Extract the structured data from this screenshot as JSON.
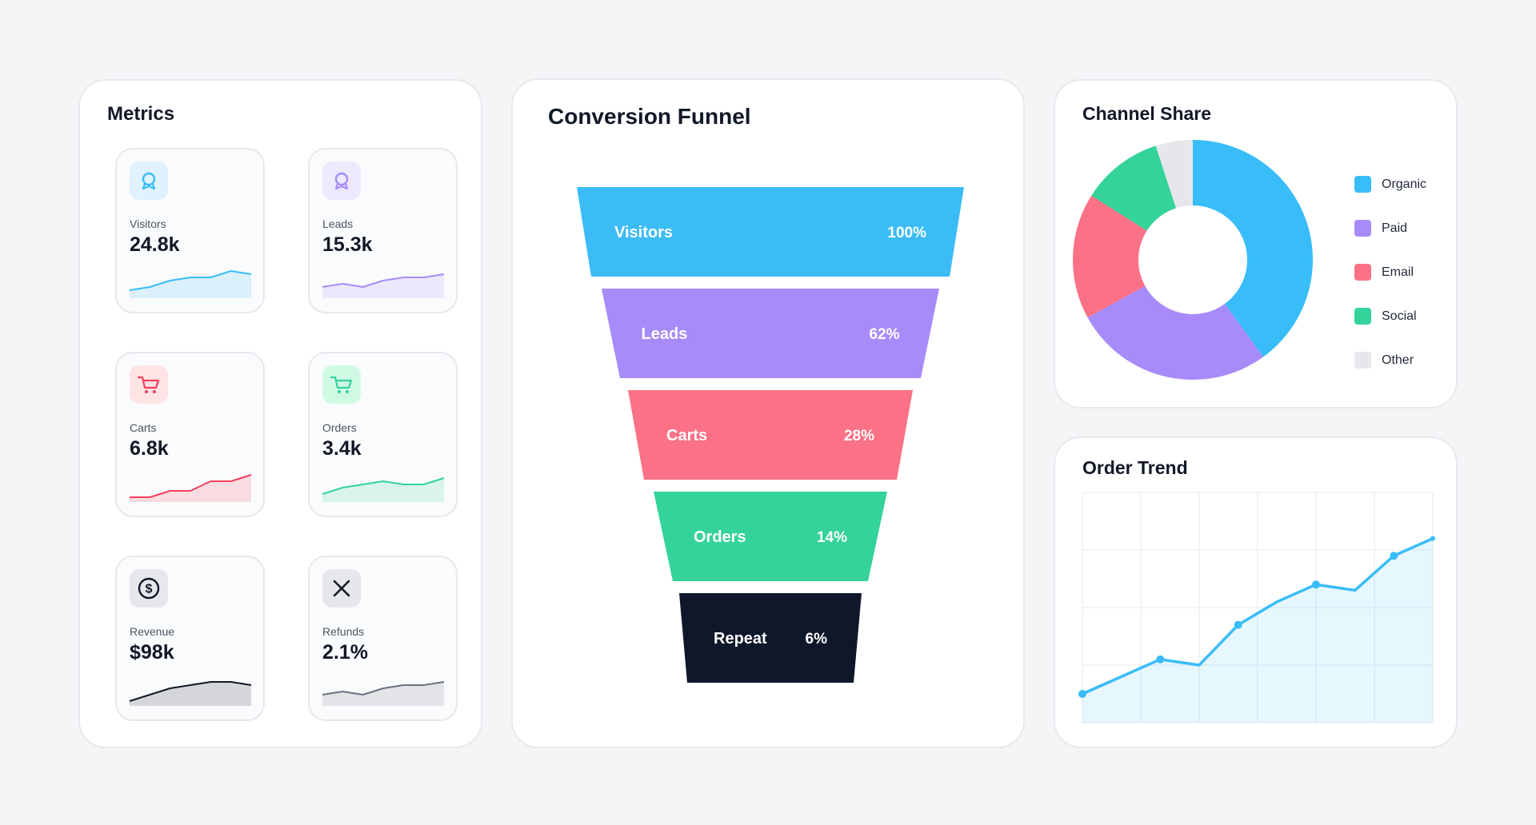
{
  "metrics": {
    "title": "Metrics",
    "cards": [
      {
        "label": "Visitors",
        "value": "24.8k",
        "icon": "user-badge-icon",
        "color": "#38bdf8",
        "iconBg": "#e0f2fe",
        "trend": [
          2,
          3,
          5,
          6,
          6,
          8,
          7
        ]
      },
      {
        "label": "Leads",
        "value": "15.3k",
        "icon": "user-badge-icon",
        "color": "#a78bfa",
        "iconBg": "#ede9fe",
        "trend": [
          3,
          4,
          3,
          5,
          6,
          6,
          7
        ]
      },
      {
        "label": "Carts",
        "value": "6.8k",
        "icon": "shopping-cart-icon",
        "color": "#f43f5e",
        "iconBg": "#ffe4e6",
        "trend": [
          1,
          1,
          3,
          3,
          6,
          6,
          8
        ]
      },
      {
        "label": "Orders",
        "value": "3.4k",
        "icon": "shopping-cart-icon",
        "color": "#34d399",
        "iconBg": "#d1fae5",
        "trend": [
          2,
          4,
          5,
          6,
          5,
          5,
          7
        ]
      },
      {
        "label": "Revenue",
        "value": "$98k",
        "icon": "dollar-coin-icon",
        "color": "#111827",
        "iconBg": "#e5e7eb",
        "trend": [
          1,
          3,
          5,
          6,
          7,
          7,
          6
        ]
      },
      {
        "label": "Refunds",
        "value": "2.1%",
        "icon": "close-icon",
        "color": "#6b7280",
        "iconBg": "#e5e7eb",
        "trend": [
          3,
          4,
          3,
          5,
          6,
          6,
          7
        ]
      }
    ]
  },
  "funnel": {
    "title": "Conversion Funnel",
    "chart_data": {
      "type": "funnel",
      "categories": [
        "Visitors",
        "Leads",
        "Carts",
        "Orders",
        "Repeat"
      ],
      "values": [
        100,
        62,
        28,
        14,
        6
      ],
      "labels": [
        "100%",
        "62%",
        "28%",
        "14%",
        "6%"
      ],
      "colors": [
        "#3bbcf6",
        "#a78bfa",
        "#fb7185",
        "#34d399",
        "#0f172a"
      ]
    }
  },
  "share": {
    "title": "Channel Share",
    "chart_data": {
      "type": "pie",
      "categories": [
        "Organic",
        "Paid",
        "Email",
        "Social",
        "Other"
      ],
      "values": [
        40,
        27,
        17,
        11,
        5
      ],
      "colors": [
        "#38bdf8",
        "#a78bfa",
        "#fb7185",
        "#34d399",
        "#e5e7eb"
      ],
      "legend": "right"
    }
  },
  "trend": {
    "title": "Order Trend",
    "chart_data": {
      "type": "area",
      "x": [
        0,
        1,
        2,
        3,
        4,
        5,
        6,
        7,
        8,
        9
      ],
      "values": [
        10,
        16,
        22,
        20,
        34,
        42,
        48,
        46,
        58,
        64
      ],
      "markers": [
        0,
        2,
        4,
        6,
        8
      ],
      "ylim": [
        0,
        80
      ],
      "grid": true,
      "color": "#38bdf8"
    }
  }
}
